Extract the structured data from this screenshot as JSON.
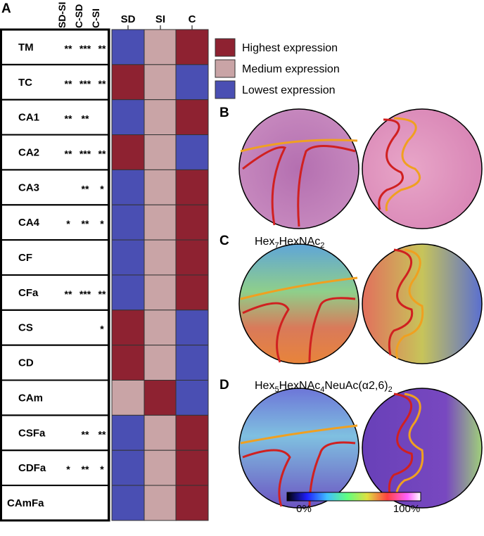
{
  "panels": {
    "a": "A",
    "b": "B",
    "c": "C",
    "d": "D"
  },
  "table": {
    "comparisons": [
      "SD-SI",
      "C-SD",
      "C-SI"
    ],
    "groups": [
      "SD",
      "SI",
      "C"
    ],
    "rows": [
      {
        "name": "TM",
        "sig": [
          "**",
          "***",
          "**"
        ],
        "cells": [
          "#4a4fb3",
          "#c9a4a6",
          "#8e2231"
        ]
      },
      {
        "name": "TC",
        "sig": [
          "**",
          "***",
          "**"
        ],
        "cells": [
          "#8e2231",
          "#c9a4a6",
          "#4a4fb3"
        ]
      },
      {
        "name": "CA1",
        "sig": [
          "**",
          "**",
          null
        ],
        "cells": [
          "#4a4fb3",
          "#c9a4a6",
          "#8e2231"
        ]
      },
      {
        "name": "CA2",
        "sig": [
          "**",
          "***",
          "**"
        ],
        "cells": [
          "#8e2231",
          "#c9a4a6",
          "#4a4fb3"
        ]
      },
      {
        "name": "CA3",
        "sig": [
          null,
          "**",
          "*"
        ],
        "cells": [
          "#4a4fb3",
          "#c9a4a6",
          "#8e2231"
        ]
      },
      {
        "name": "CA4",
        "sig": [
          "*",
          "**",
          "*"
        ],
        "cells": [
          "#4a4fb3",
          "#c9a4a6",
          "#8e2231"
        ]
      },
      {
        "name": "CF",
        "sig": [
          null,
          null,
          null
        ],
        "cells": [
          "#4a4fb3",
          "#c9a4a6",
          "#8e2231"
        ]
      },
      {
        "name": "CFa",
        "sig": [
          "**",
          "***",
          "**"
        ],
        "cells": [
          "#4a4fb3",
          "#c9a4a6",
          "#8e2231"
        ]
      },
      {
        "name": "CS",
        "sig": [
          null,
          null,
          "*"
        ],
        "cells": [
          "#8e2231",
          "#c9a4a6",
          "#4a4fb3"
        ]
      },
      {
        "name": "CD",
        "sig": [
          null,
          null,
          null
        ],
        "cells": [
          "#8e2231",
          "#c9a4a6",
          "#4a4fb3"
        ]
      },
      {
        "name": "CAm",
        "sig": [
          null,
          null,
          null
        ],
        "cells": [
          "#c9a4a6",
          "#8e2231",
          "#4a4fb3"
        ]
      },
      {
        "name": "CSFa",
        "sig": [
          null,
          "**",
          "**"
        ],
        "cells": [
          "#4a4fb3",
          "#c9a4a6",
          "#8e2231"
        ]
      },
      {
        "name": "CDFa",
        "sig": [
          "*",
          "**",
          "*"
        ],
        "cells": [
          "#4a4fb3",
          "#c9a4a6",
          "#8e2231"
        ]
      },
      {
        "name": "CAmFa",
        "sig": [
          null,
          null,
          null
        ],
        "cells": [
          "#4a4fb3",
          "#c9a4a6",
          "#8e2231"
        ]
      }
    ]
  },
  "legend": [
    {
      "label": "Highest expression",
      "color": "#8e2231"
    },
    {
      "label": "Medium expression",
      "color": "#c9a4a6"
    },
    {
      "label": "Lowest expression",
      "color": "#4a4fb3"
    }
  ],
  "glycans": {
    "c": [
      "Hex",
      "7",
      "HexNAc",
      "2"
    ],
    "d": [
      "Hex",
      "5",
      "HexNAc",
      "4",
      "NeuAc(α2,6)",
      "2"
    ]
  },
  "colorbar": {
    "min": "0%",
    "max": "100%"
  }
}
